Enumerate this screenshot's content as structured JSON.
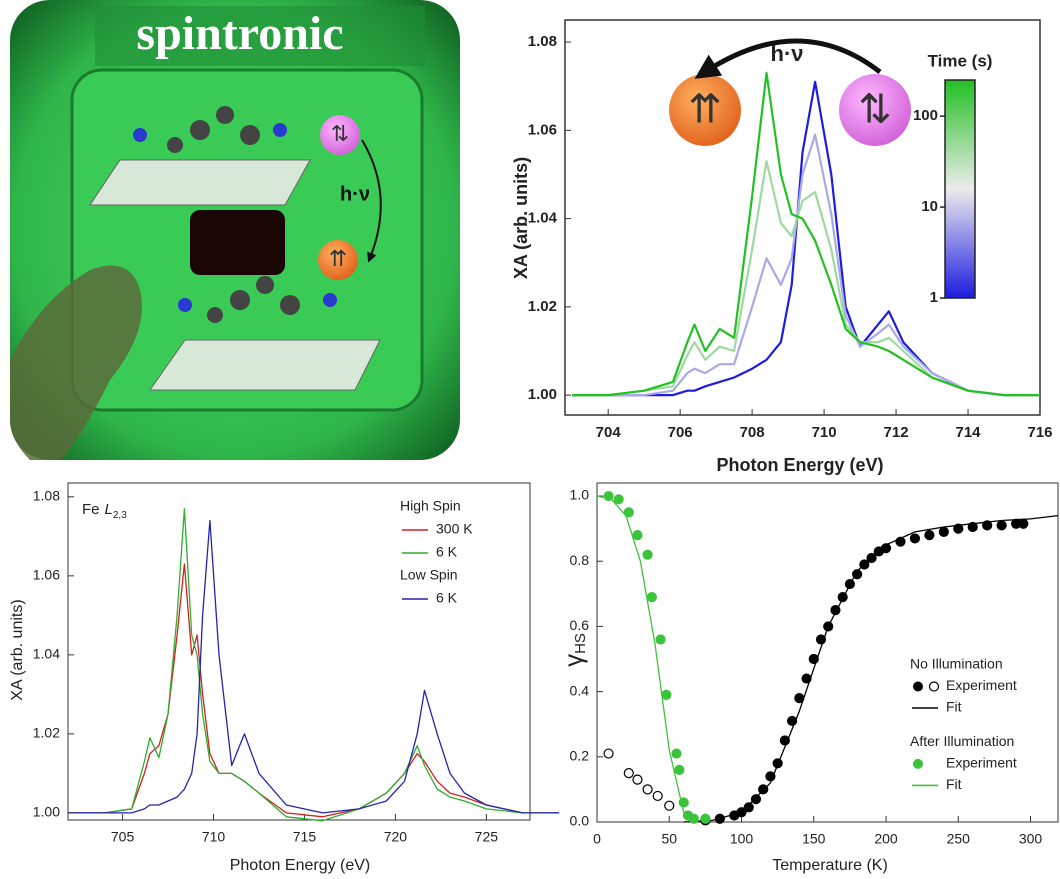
{
  "illustration": {
    "title": "spintronic",
    "label": "h·ν"
  },
  "chart_data": [
    {
      "type": "line",
      "annotation": "h·ν",
      "xlabel": "Photon Energy (eV)",
      "ylabel": "XA (arb. units)",
      "x": [
        703,
        704,
        705,
        705.8,
        706.2,
        706.4,
        706.7,
        707.1,
        707.5,
        708,
        708.4,
        708.8,
        709.1,
        709.4,
        709.75,
        710.2,
        710.6,
        711,
        711.5,
        711.8,
        712.2,
        713,
        714,
        715,
        716
      ],
      "series": [
        {
          "color": "#1c1ce0",
          "values": [
            1.0,
            1.0,
            1.0,
            1.0,
            1.001,
            1.001,
            1.002,
            1.003,
            1.004,
            1.006,
            1.008,
            1.012,
            1.025,
            1.055,
            1.071,
            1.05,
            1.02,
            1.011,
            1.016,
            1.019,
            1.012,
            1.005,
            1.001,
            1.0,
            1.0
          ]
        },
        {
          "color": "#a9a9e6",
          "values": [
            1.0,
            1.0,
            1.0,
            1.001,
            1.005,
            1.006,
            1.005,
            1.007,
            1.007,
            1.02,
            1.031,
            1.025,
            1.031,
            1.05,
            1.059,
            1.041,
            1.018,
            1.011,
            1.014,
            1.016,
            1.011,
            1.005,
            1.001,
            1.0,
            1.0
          ]
        },
        {
          "color": "#9fd99f",
          "values": [
            1.0,
            1.0,
            1.001,
            1.002,
            1.009,
            1.012,
            1.008,
            1.011,
            1.01,
            1.033,
            1.053,
            1.039,
            1.036,
            1.044,
            1.046,
            1.033,
            1.016,
            1.012,
            1.012,
            1.013,
            1.01,
            1.004,
            1.001,
            1.0,
            1.0
          ]
        },
        {
          "color": "#22c022",
          "values": [
            1.0,
            1.0,
            1.001,
            1.003,
            1.012,
            1.016,
            1.01,
            1.015,
            1.013,
            1.045,
            1.073,
            1.05,
            1.041,
            1.04,
            1.035,
            1.025,
            1.015,
            1.012,
            1.011,
            1.01,
            1.008,
            1.004,
            1.001,
            1.0,
            1.0
          ]
        }
      ],
      "xlim": [
        702.8,
        716
      ],
      "xticks": [
        704,
        706,
        708,
        710,
        712,
        714,
        716
      ],
      "ylim": [
        0.9955,
        1.085
      ],
      "yticks": [
        {
          "value": 1.0,
          "label": "1.00"
        },
        1.02,
        1.04,
        1.06,
        1.08
      ],
      "colorbar": {
        "label": "Time (s)",
        "lim": [
          1,
          250
        ],
        "ticks": [
          1,
          10,
          100
        ],
        "log": true,
        "colors": [
          "#1c1ce0",
          "#ececec",
          "#22c022"
        ]
      }
    },
    {
      "type": "line",
      "annotation": {
        "text": "Fe",
        "symbol": "L",
        "subscript": "2,3"
      },
      "xlabel": "Photon Energy (eV)",
      "ylabel": "XA (arb. units)",
      "x": [
        702,
        704,
        705.5,
        706.2,
        706.5,
        707,
        707.5,
        708,
        708.4,
        708.8,
        709.1,
        709.4,
        709.8,
        710.3,
        711,
        711.7,
        712.5,
        714,
        716,
        718,
        719.5,
        720.5,
        721.2,
        721.6,
        722.3,
        723,
        723.8,
        725,
        727,
        729
      ],
      "series": [
        {
          "name": "300 K",
          "group": "High Spin",
          "color": "#d42020",
          "values": [
            1.0,
            1.0,
            1.001,
            1.01,
            1.015,
            1.017,
            1.025,
            1.045,
            1.063,
            1.04,
            1.045,
            1.03,
            1.015,
            1.01,
            1.01,
            1.008,
            1.005,
            1.0,
            0.999,
            1.001,
            1.005,
            1.01,
            1.015,
            1.013,
            1.008,
            1.005,
            1.004,
            1.002,
            1.0,
            1.0
          ]
        },
        {
          "name": "6 K",
          "color": "#2fae2f",
          "values": [
            1.0,
            1.0,
            1.001,
            1.013,
            1.019,
            1.014,
            1.025,
            1.05,
            1.077,
            1.045,
            1.04,
            1.025,
            1.013,
            1.01,
            1.01,
            1.008,
            1.005,
            0.999,
            0.998,
            1.001,
            1.005,
            1.01,
            1.017,
            1.012,
            1.006,
            1.004,
            1.003,
            1.001,
            1.0,
            1.0
          ]
        },
        {
          "name": "6 K",
          "group": "Low Spin",
          "color": "#2424b0",
          "values": [
            1.0,
            1.0,
            1.0,
            1.001,
            1.002,
            1.002,
            1.003,
            1.004,
            1.006,
            1.01,
            1.02,
            1.05,
            1.074,
            1.04,
            1.012,
            1.02,
            1.01,
            1.002,
            1.0,
            1.001,
            1.003,
            1.008,
            1.02,
            1.031,
            1.02,
            1.01,
            1.005,
            1.002,
            1.0,
            1.0
          ]
        }
      ],
      "xlim": [
        702,
        727.4
      ],
      "xticks": [
        705,
        710,
        715,
        720,
        725
      ],
      "ylim": [
        0.9982,
        1.0835
      ],
      "yticks": [
        {
          "value": 1.0,
          "label": "1.00"
        },
        1.02,
        1.04,
        1.06,
        1.08
      ]
    },
    {
      "type": "scatter",
      "xlabel": "Temperature (K)",
      "ylabel": {
        "text": "γ",
        "subscript": "HS"
      },
      "series": [
        {
          "name": "Experiment",
          "group": "No Illumination",
          "color": "#000000",
          "mode": "markers",
          "marker": "filled",
          "x": [
            75,
            85,
            95,
            100,
            105,
            110,
            115,
            120,
            125,
            130,
            135,
            140,
            145,
            150,
            155,
            160,
            165,
            170,
            175,
            180,
            185,
            190,
            195,
            200,
            210,
            220,
            230,
            240,
            250,
            260,
            270,
            280,
            290,
            295
          ],
          "values": [
            0.005,
            0.01,
            0.02,
            0.03,
            0.045,
            0.07,
            0.1,
            0.14,
            0.18,
            0.25,
            0.31,
            0.38,
            0.44,
            0.5,
            0.56,
            0.6,
            0.65,
            0.69,
            0.73,
            0.76,
            0.79,
            0.81,
            0.83,
            0.84,
            0.86,
            0.87,
            0.88,
            0.89,
            0.9,
            0.905,
            0.91,
            0.91,
            0.915,
            0.915
          ]
        },
        {
          "color": "#000000",
          "mode": "markers",
          "marker": "open",
          "x": [
            8,
            22,
            28,
            35,
            42,
            50
          ],
          "values": [
            0.21,
            0.15,
            0.13,
            0.1,
            0.08,
            0.05
          ]
        },
        {
          "name": "Fit",
          "color": "#000000",
          "mode": "line",
          "x": [
            60,
            80,
            100,
            120,
            140,
            160,
            180,
            200,
            220,
            240,
            260,
            280,
            300,
            319
          ],
          "values": [
            0.0,
            0.005,
            0.03,
            0.12,
            0.34,
            0.6,
            0.77,
            0.85,
            0.89,
            0.905,
            0.915,
            0.925,
            0.93,
            0.94
          ]
        },
        {
          "name": "Experiment",
          "group": "After Illumination",
          "color": "#3cc33c",
          "mode": "markers",
          "marker": "filled",
          "x": [
            8,
            15,
            22,
            28,
            35,
            38,
            44,
            48,
            55,
            57,
            60,
            63,
            67,
            75
          ],
          "values": [
            1.0,
            0.99,
            0.95,
            0.88,
            0.82,
            0.69,
            0.56,
            0.39,
            0.21,
            0.16,
            0.06,
            0.02,
            0.01,
            0.01
          ]
        },
        {
          "name": "Fit",
          "color": "#3cc33c",
          "mode": "line",
          "x": [
            0,
            10,
            20,
            30,
            40,
            50,
            60,
            70
          ],
          "values": [
            1.0,
            0.99,
            0.94,
            0.8,
            0.55,
            0.22,
            0.03,
            0.0
          ]
        }
      ],
      "xlim": [
        0,
        319
      ],
      "xticks": [
        0,
        50,
        100,
        150,
        200,
        250,
        300
      ],
      "ylim": [
        0,
        1.04
      ],
      "yticks": [
        {
          "value": 0,
          "label": "0.0"
        },
        0.2,
        0.4,
        0.6,
        0.8,
        {
          "value": 1.0,
          "label": "1.0"
        }
      ]
    }
  ]
}
